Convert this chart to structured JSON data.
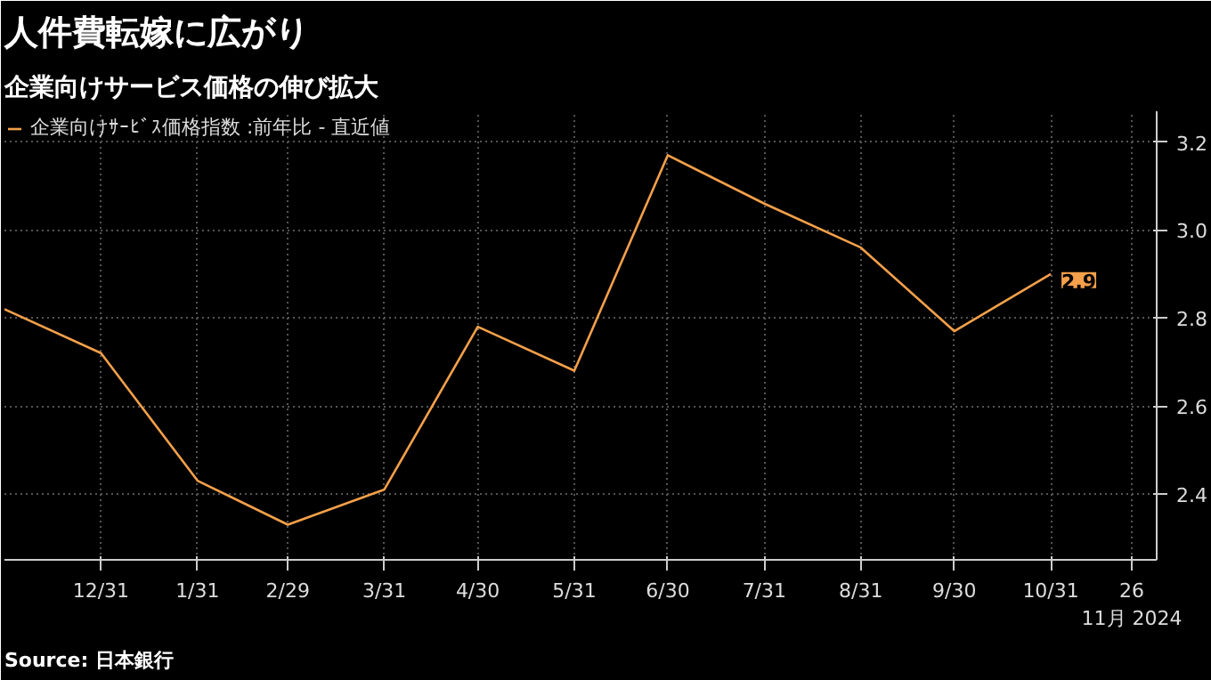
{
  "chart_data": {
    "type": "line",
    "title": "人件費転嫁に広がり",
    "subtitle": "企業向けサービス価格の伸び拡大",
    "x": [
      "2023-11-30",
      "2023-12-31",
      "2024-01-31",
      "2024-02-29",
      "2024-03-31",
      "2024-04-30",
      "2024-05-31",
      "2024-06-30",
      "2024-07-31",
      "2024-08-31",
      "2024-09-30",
      "2024-10-31"
    ],
    "series": [
      {
        "name": "企業向けｻｰﾋﾞｽ価格指数 :前年比 - 直近値",
        "color": "#f5a04a",
        "values": [
          2.82,
          2.72,
          2.43,
          2.33,
          2.41,
          2.78,
          2.68,
          3.17,
          3.06,
          2.96,
          2.77,
          2.9
        ],
        "value_labels": [
          null,
          null,
          null,
          null,
          null,
          null,
          null,
          null,
          null,
          null,
          null,
          "2.9"
        ]
      }
    ],
    "xlim": [
      "2023-11-30",
      "2024-12-04"
    ],
    "xticks": [
      {
        "value": "2023-12-31",
        "label": "12/31"
      },
      {
        "value": "2024-01-31",
        "label": "1/31"
      },
      {
        "value": "2024-02-29",
        "label": "2/29"
      },
      {
        "value": "2024-03-31",
        "label": "3/31"
      },
      {
        "value": "2024-04-30",
        "label": "4/30"
      },
      {
        "value": "2024-05-31",
        "label": "5/31"
      },
      {
        "value": "2024-06-30",
        "label": "6/30"
      },
      {
        "value": "2024-07-31",
        "label": "7/31"
      },
      {
        "value": "2024-08-31",
        "label": "8/31"
      },
      {
        "value": "2024-09-30",
        "label": "9/30"
      },
      {
        "value": "2024-10-31",
        "label": "10/31"
      },
      {
        "value": "2024-11-26",
        "label": "26\n11月 2024"
      }
    ],
    "ylim": [
      2.25,
      3.27
    ],
    "yticks": [
      2.4,
      2.6,
      2.8,
      {
        "value": 3,
        "label": "3.0"
      },
      3.2
    ],
    "grid": true,
    "legend": "top left",
    "annotations": [
      "Source: 日本銀行"
    ]
  }
}
